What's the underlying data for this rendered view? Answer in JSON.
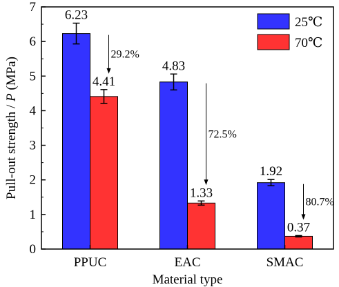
{
  "chart_data": {
    "type": "bar",
    "categories": [
      "PPUC",
      "EAC",
      "SMAC"
    ],
    "series": [
      {
        "name": "25℃",
        "color": "#3333ff",
        "values": [
          6.23,
          4.83,
          1.92
        ],
        "errors": [
          0.3,
          0.23,
          0.09
        ]
      },
      {
        "name": "70℃",
        "color": "#ff3333",
        "values": [
          4.41,
          1.33,
          0.37
        ],
        "errors": [
          0.2,
          0.06,
          0.02
        ]
      }
    ],
    "data_labels": [
      [
        "6.23",
        "4.83",
        "1.92"
      ],
      [
        "4.41",
        "1.33",
        "0.37"
      ]
    ],
    "reductions": [
      "29.2%",
      "72.5%",
      "80.7%"
    ],
    "xlabel": "Material type",
    "ylabel_parts": [
      "Pull-out strength / ",
      "P",
      " (MPa)"
    ],
    "ylim": [
      0,
      7
    ],
    "yticks": [
      0,
      1,
      2,
      3,
      4,
      5,
      6,
      7
    ],
    "legend_position": "top-right",
    "grid": false
  }
}
